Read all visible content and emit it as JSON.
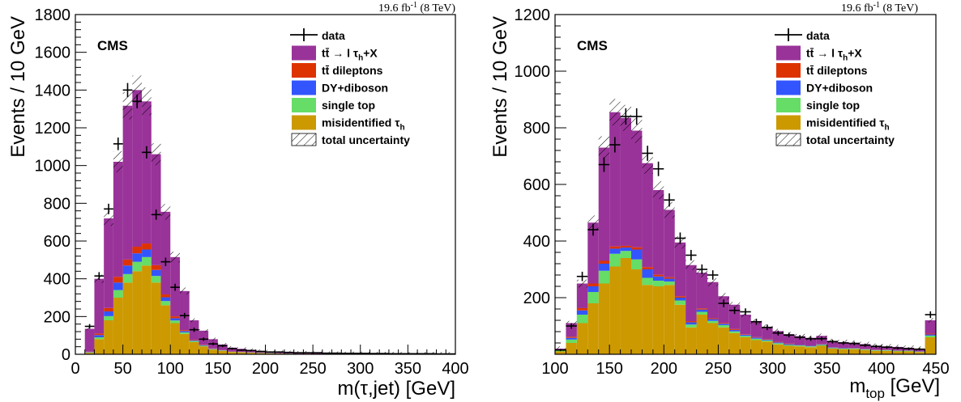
{
  "chart_data": [
    {
      "type": "bar",
      "stacked": true,
      "cms_label": "CMS",
      "lumi_label": {
        "base": "19.6 fb",
        "sup": "-1",
        "rest": " (8 TeV)"
      },
      "ylabel": "Events / 10 GeV",
      "xlabel": {
        "text": "m(τ,jet) [GeV]"
      },
      "xlim": [
        0,
        400
      ],
      "ylim": [
        0,
        1800
      ],
      "xticks": [
        0,
        50,
        100,
        150,
        200,
        250,
        300,
        350,
        400
      ],
      "yticks": [
        0,
        200,
        400,
        600,
        800,
        1000,
        1200,
        1400,
        1600,
        1800
      ],
      "x": [
        5,
        15,
        25,
        35,
        45,
        55,
        65,
        75,
        85,
        95,
        105,
        115,
        125,
        135,
        145,
        155,
        165,
        175,
        185,
        195,
        205,
        215,
        225,
        235,
        245,
        255,
        265,
        275,
        285,
        295,
        305,
        315,
        325,
        335,
        345,
        355,
        365,
        375,
        385,
        395
      ],
      "series": [
        {
          "key": "misid",
          "color": "#cc9900",
          "values": [
            0,
            8,
            80,
            180,
            300,
            380,
            440,
            470,
            380,
            260,
            165,
            108,
            65,
            42,
            25,
            18,
            12,
            10,
            8,
            6,
            5,
            4,
            3,
            3,
            3,
            2,
            2,
            2,
            2,
            2,
            2,
            1,
            1,
            1,
            1,
            1,
            1,
            1,
            1,
            1
          ]
        },
        {
          "key": "singletop",
          "color": "#66dd66",
          "values": [
            0,
            2,
            10,
            22,
            40,
            45,
            50,
            45,
            35,
            22,
            14,
            8,
            5,
            3,
            2,
            2,
            1,
            1,
            1,
            1,
            1,
            1,
            1,
            0,
            0,
            0,
            0,
            0,
            0,
            0,
            0,
            0,
            0,
            0,
            0,
            0,
            0,
            0,
            0,
            0
          ]
        },
        {
          "key": "dy",
          "color": "#3355ff",
          "values": [
            0,
            2,
            12,
            25,
            40,
            45,
            45,
            40,
            32,
            20,
            12,
            7,
            4,
            3,
            2,
            1,
            1,
            1,
            1,
            1,
            1,
            0,
            0,
            0,
            0,
            0,
            0,
            0,
            0,
            0,
            0,
            0,
            0,
            0,
            0,
            0,
            0,
            0,
            0,
            0
          ]
        },
        {
          "key": "dilep",
          "color": "#dd3300",
          "values": [
            0,
            2,
            8,
            18,
            30,
            32,
            35,
            32,
            25,
            15,
            10,
            5,
            3,
            2,
            2,
            1,
            1,
            1,
            1,
            1,
            0,
            0,
            0,
            0,
            0,
            0,
            0,
            0,
            0,
            0,
            0,
            0,
            0,
            0,
            0,
            0,
            0,
            0,
            0,
            0
          ]
        },
        {
          "key": "signal",
          "color": "#993399",
          "values": [
            0,
            121,
            290,
            475,
            610,
            815,
            830,
            753,
            588,
            438,
            314,
            207,
            103,
            75,
            49,
            30,
            20,
            16,
            12,
            9,
            8,
            8,
            7,
            6,
            6,
            5,
            5,
            5,
            4,
            4,
            4,
            4,
            4,
            3,
            3,
            3,
            3,
            3,
            3,
            3
          ]
        }
      ],
      "totals": [
        0,
        135,
        400,
        720,
        1020,
        1317,
        1400,
        1340,
        1060,
        755,
        515,
        335,
        180,
        125,
        80,
        52,
        35,
        29,
        23,
        18,
        15,
        13,
        11,
        9,
        9,
        7,
        7,
        7,
        6,
        6,
        6,
        5,
        5,
        4,
        4,
        4,
        4,
        4,
        4,
        4
      ],
      "data": [
        0,
        148,
        415,
        770,
        1115,
        1400,
        1340,
        1070,
        740,
        490,
        355,
        205,
        130,
        80,
        55,
        45,
        30,
        22,
        20,
        15,
        12,
        12,
        10,
        8,
        8,
        8,
        6,
        6,
        5,
        5,
        5,
        4,
        4,
        3,
        3,
        3,
        3,
        3,
        2,
        2
      ],
      "legend": [
        {
          "key": "data",
          "label": "data"
        },
        {
          "key": "signal",
          "label": "tt̄ → l τ",
          "sub": "h",
          "after": "+X"
        },
        {
          "key": "dilep",
          "label": "tt̄ dileptons"
        },
        {
          "key": "dy",
          "label": "DY+diboson"
        },
        {
          "key": "singletop",
          "label": "single top"
        },
        {
          "key": "misid",
          "label": "misidentified τ",
          "sub": "h"
        },
        {
          "key": "unc",
          "label": "total uncertainty"
        }
      ]
    },
    {
      "type": "bar",
      "stacked": true,
      "cms_label": "CMS",
      "lumi_label": {
        "base": "19.6 fb",
        "sup": "-1",
        "rest": " (8 TeV)"
      },
      "ylabel": "Events / 10 GeV",
      "xlabel": {
        "text": "m",
        "sub": "top",
        "after": " [GeV]"
      },
      "xlim": [
        100,
        450
      ],
      "ylim": [
        0,
        1200
      ],
      "xticks": [
        100,
        150,
        200,
        250,
        300,
        350,
        400,
        450
      ],
      "yticks": [
        200,
        400,
        600,
        800,
        1000,
        1200
      ],
      "x": [
        105,
        115,
        125,
        135,
        145,
        155,
        165,
        175,
        185,
        195,
        205,
        215,
        225,
        235,
        245,
        255,
        265,
        275,
        285,
        295,
        305,
        315,
        325,
        335,
        345,
        355,
        365,
        375,
        385,
        395,
        405,
        415,
        425,
        435,
        445
      ],
      "series": [
        {
          "key": "misid",
          "color": "#cc9900",
          "values": [
            10,
            40,
            110,
            180,
            250,
            310,
            340,
            300,
            245,
            240,
            245,
            175,
            95,
            140,
            110,
            95,
            75,
            60,
            50,
            45,
            35,
            30,
            28,
            25,
            30,
            20,
            18,
            18,
            15,
            12,
            12,
            10,
            10,
            8,
            60
          ]
        },
        {
          "key": "singletop",
          "color": "#66dd66",
          "values": [
            3,
            12,
            30,
            40,
            45,
            45,
            25,
            35,
            25,
            20,
            12,
            15,
            10,
            10,
            8,
            8,
            6,
            5,
            5,
            4,
            4,
            3,
            3,
            3,
            3,
            2,
            2,
            2,
            2,
            2,
            2,
            2,
            2,
            1,
            6
          ]
        },
        {
          "key": "dy",
          "color": "#3355ff",
          "values": [
            2,
            6,
            15,
            20,
            25,
            18,
            12,
            35,
            30,
            15,
            10,
            10,
            8,
            8,
            6,
            5,
            5,
            4,
            4,
            3,
            3,
            3,
            2,
            2,
            2,
            2,
            2,
            1,
            1,
            1,
            1,
            1,
            1,
            1,
            4
          ]
        },
        {
          "key": "dilep",
          "color": "#dd3300",
          "values": [
            1,
            4,
            8,
            10,
            10,
            8,
            6,
            8,
            8,
            6,
            5,
            5,
            4,
            4,
            3,
            3,
            3,
            2,
            2,
            2,
            2,
            2,
            1,
            1,
            1,
            1,
            1,
            1,
            1,
            1,
            1,
            1,
            1,
            1,
            3
          ]
        },
        {
          "key": "signal",
          "color": "#993399",
          "values": [
            4,
            48,
            87,
            215,
            400,
            474,
            452,
            412,
            367,
            299,
            238,
            190,
            198,
            126,
            128,
            94,
            86,
            69,
            54,
            43,
            38,
            33,
            30,
            27,
            29,
            22,
            20,
            19,
            17,
            14,
            12,
            12,
            9,
            9,
            47
          ]
        }
      ],
      "totals": [
        20,
        110,
        250,
        465,
        730,
        855,
        835,
        790,
        675,
        580,
        510,
        395,
        315,
        288,
        255,
        205,
        175,
        140,
        115,
        97,
        82,
        71,
        64,
        58,
        65,
        47,
        43,
        41,
        36,
        30,
        28,
        26,
        23,
        20,
        120
      ],
      "data": [
        15,
        100,
        275,
        440,
        670,
        740,
        840,
        840,
        710,
        655,
        545,
        410,
        350,
        300,
        280,
        180,
        155,
        150,
        115,
        95,
        75,
        68,
        60,
        55,
        55,
        45,
        40,
        38,
        32,
        28,
        25,
        22,
        20,
        18,
        140
      ],
      "legend": [
        {
          "key": "data",
          "label": "data"
        },
        {
          "key": "signal",
          "label": "tt̄ → l τ",
          "sub": "h",
          "after": "+X"
        },
        {
          "key": "dilep",
          "label": "tt̄ dileptons"
        },
        {
          "key": "dy",
          "label": "DY+diboson"
        },
        {
          "key": "singletop",
          "label": "single top"
        },
        {
          "key": "misid",
          "label": "misidentified τ",
          "sub": "h"
        },
        {
          "key": "unc",
          "label": "total uncertainty"
        }
      ]
    }
  ]
}
